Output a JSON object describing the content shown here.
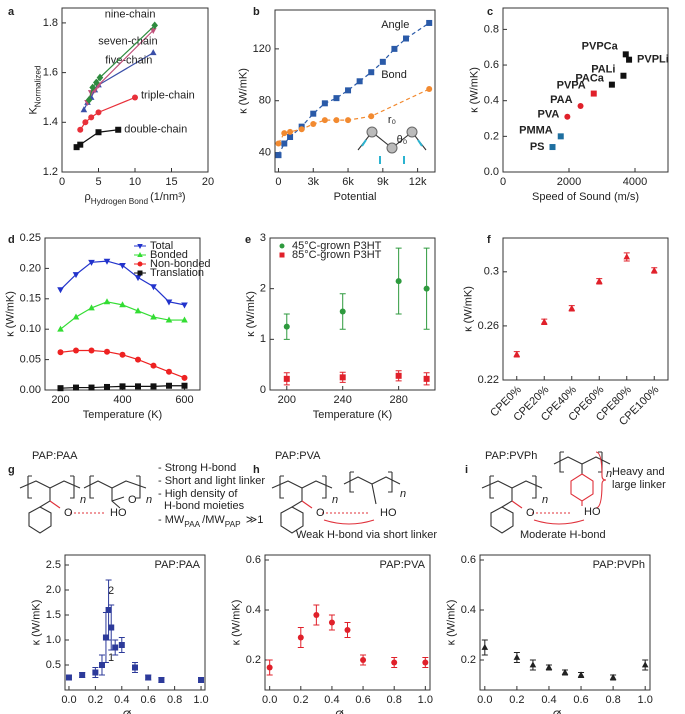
{
  "chart_data": [
    {
      "type": "line",
      "panel": "a",
      "xlabel": [
        {
          "text": "ρ"
        },
        {
          "text": "Hydrogen Bond",
          "sub": true
        },
        {
          "text": "(1/nm³)"
        }
      ],
      "ylabel": [
        {
          "text": "K"
        },
        {
          "text": "Normalized",
          "sub": true
        }
      ],
      "xlim": [
        0,
        20
      ],
      "xticks": [
        0,
        5,
        10,
        15,
        20
      ],
      "ylim": [
        1.2,
        1.86
      ],
      "yticks": [
        1.2,
        1.4,
        1.6,
        1.8
      ],
      "legend": "inline",
      "line": "solid",
      "series": [
        {
          "name": "double-chain",
          "color": "#111111",
          "marker": "square",
          "x": [
            2,
            2.5,
            5,
            7.7
          ],
          "values": [
            1.3,
            1.31,
            1.36,
            1.37
          ]
        },
        {
          "name": "triple-chain",
          "color": "#e8303a",
          "marker": "circle",
          "x": [
            2.5,
            3.2,
            4,
            5,
            10
          ],
          "values": [
            1.37,
            1.4,
            1.42,
            1.44,
            1.5
          ]
        },
        {
          "name": "five-chain",
          "color": "#3a4fa8",
          "marker": "triangle-up",
          "x": [
            3,
            3.5,
            4,
            4.5,
            5,
            12.5
          ],
          "values": [
            1.45,
            1.48,
            1.5,
            1.53,
            1.55,
            1.68
          ]
        },
        {
          "name": "seven-chain",
          "color": "#c0507a",
          "marker": "triangle-down",
          "x": [
            3.5,
            4,
            4.5,
            5,
            12.5
          ],
          "values": [
            1.48,
            1.52,
            1.53,
            1.55,
            1.77
          ]
        },
        {
          "name": "nine-chain",
          "color": "#2e8b3e",
          "marker": "diamond",
          "x": [
            3.7,
            4.2,
            4.7,
            5.2,
            12.7
          ],
          "values": [
            1.49,
            1.54,
            1.56,
            1.58,
            1.79
          ]
        }
      ]
    },
    {
      "type": "line",
      "panel": "b",
      "xlabel": "Potential",
      "ylabel": "κ (W/mK)",
      "xlim": [
        -300,
        13500
      ],
      "xticks": [
        0,
        {
          "value": 3000,
          "label": "3k"
        },
        {
          "value": 6000,
          "label": "6k"
        },
        {
          "value": 9000,
          "label": "9k"
        },
        {
          "value": 12000,
          "label": "12k"
        }
      ],
      "ylim": [
        25,
        150
      ],
      "yticks": [
        40,
        80,
        120
      ],
      "legend": "inline",
      "line": "dashed",
      "annotations": [
        "r₀",
        "θ₀"
      ],
      "series": [
        {
          "name": "Angle",
          "color": "#2a5aa8",
          "marker": "square",
          "x": [
            0,
            500,
            1000,
            2000,
            3000,
            4000,
            5000,
            6000,
            7000,
            8000,
            9000,
            10000,
            11000,
            13000
          ],
          "values": [
            38,
            47,
            52,
            60,
            70,
            78,
            82,
            88,
            95,
            102,
            110,
            120,
            128,
            140
          ]
        },
        {
          "name": "Bond",
          "color": "#f28a30",
          "marker": "circle",
          "x": [
            0,
            500,
            1000,
            2000,
            3000,
            4000,
            5000,
            6000,
            8000,
            13000
          ],
          "values": [
            47,
            55,
            56,
            58,
            62,
            65,
            65,
            65,
            68,
            89
          ]
        }
      ]
    },
    {
      "type": "scatter",
      "panel": "c",
      "xlabel": "Speed of Sound (m/s)",
      "ylabel": "κ (W/mK)",
      "xlim": [
        0,
        5000
      ],
      "xticks": [
        0,
        2000,
        4000
      ],
      "ylim": [
        0,
        0.92
      ],
      "yticks": [
        {
          "value": 0,
          "label": "0.0"
        },
        0.2,
        0.4,
        0.6,
        0.8
      ],
      "legend": "inline",
      "series": [
        {
          "name": "PS",
          "color": "#1e6fa0",
          "marker": "square",
          "x": [
            1500
          ],
          "values": [
            0.14
          ]
        },
        {
          "name": "PMMA",
          "color": "#1e6fa0",
          "marker": "square",
          "x": [
            1750
          ],
          "values": [
            0.2
          ]
        },
        {
          "name": "PVA",
          "color": "#e0202a",
          "marker": "circle",
          "x": [
            1950
          ],
          "values": [
            0.31
          ]
        },
        {
          "name": "PAA",
          "color": "#e0202a",
          "marker": "circle",
          "x": [
            2350
          ],
          "values": [
            0.37
          ]
        },
        {
          "name": "PVPA",
          "color": "#e0202a",
          "marker": "square",
          "x": [
            2750
          ],
          "values": [
            0.44
          ]
        },
        {
          "name": "PACa",
          "color": "#111111",
          "marker": "square",
          "x": [
            3300
          ],
          "values": [
            0.49
          ]
        },
        {
          "name": "PALi",
          "color": "#111111",
          "marker": "square",
          "x": [
            3650
          ],
          "values": [
            0.54
          ]
        },
        {
          "name": "PVPCa",
          "color": "#111111",
          "marker": "square",
          "x": [
            3720
          ],
          "values": [
            0.66
          ]
        },
        {
          "name": "PVPLi",
          "color": "#111111",
          "marker": "square",
          "x": [
            3820
          ],
          "values": [
            0.63
          ]
        }
      ]
    },
    {
      "type": "line",
      "panel": "d",
      "xlabel": "Temperature (K)",
      "ylabel": "κ (W/mK)",
      "xlim": [
        150,
        650
      ],
      "xticks": [
        200,
        400,
        600
      ],
      "ylim": [
        0,
        0.25
      ],
      "yticks": [
        {
          "value": 0,
          "label": "0.00"
        },
        {
          "value": 0.05,
          "label": "0.05"
        },
        {
          "value": 0.1,
          "label": "0.10"
        },
        {
          "value": 0.15,
          "label": "0.15"
        },
        {
          "value": 0.2,
          "label": "0.20"
        },
        {
          "value": 0.25,
          "label": "0.25"
        }
      ],
      "legend": "upper right",
      "line": "solid",
      "series": [
        {
          "name": "Total",
          "color": "#2233cc",
          "marker": "triangle-down",
          "x": [
            200,
            250,
            300,
            350,
            400,
            450,
            500,
            550,
            600
          ],
          "values": [
            0.165,
            0.19,
            0.21,
            0.212,
            0.205,
            0.185,
            0.17,
            0.145,
            0.14
          ]
        },
        {
          "name": "Bonded",
          "color": "#33dd33",
          "marker": "triangle-up",
          "x": [
            200,
            250,
            300,
            350,
            400,
            450,
            500,
            550,
            600
          ],
          "values": [
            0.1,
            0.12,
            0.135,
            0.145,
            0.14,
            0.13,
            0.12,
            0.115,
            0.115
          ]
        },
        {
          "name": "Non-bonded",
          "color": "#ee2222",
          "marker": "circle",
          "x": [
            200,
            250,
            300,
            350,
            400,
            450,
            500,
            550,
            600
          ],
          "values": [
            0.062,
            0.065,
            0.065,
            0.063,
            0.058,
            0.05,
            0.04,
            0.03,
            0.02
          ]
        },
        {
          "name": "Translation",
          "color": "#111111",
          "marker": "square",
          "x": [
            200,
            250,
            300,
            350,
            400,
            450,
            500,
            550,
            600
          ],
          "values": [
            0.003,
            0.004,
            0.004,
            0.005,
            0.006,
            0.006,
            0.006,
            0.007,
            0.007
          ]
        }
      ]
    },
    {
      "type": "scatter",
      "panel": "e",
      "xlabel": "Temperature (K)",
      "ylabel": "κ (W/mK)",
      "xlim": [
        188,
        306
      ],
      "xticks": [
        200,
        240,
        280
      ],
      "ylim": [
        0,
        3
      ],
      "yticks": [
        0,
        1,
        2,
        3
      ],
      "legend": "upper left",
      "series": [
        {
          "name": "45°C-grown P3HT",
          "color": "#2e9a3e",
          "marker": "circle",
          "x": [
            200,
            240,
            280,
            300
          ],
          "values": [
            1.25,
            1.55,
            2.15,
            2.0
          ],
          "errors": [
            0.25,
            0.35,
            0.65,
            0.8
          ]
        },
        {
          "name": "85°C-grown P3HT",
          "color": "#e0202a",
          "marker": "square",
          "x": [
            200,
            240,
            280,
            300
          ],
          "values": [
            0.22,
            0.25,
            0.28,
            0.22
          ],
          "errors": [
            0.12,
            0.1,
            0.1,
            0.12
          ]
        }
      ]
    },
    {
      "type": "scatter",
      "panel": "f",
      "ylabel": "κ (W/mK)",
      "categories": [
        "CPE0%",
        "CPE20%",
        "CPE40%",
        "CPE60%",
        "CPE80%",
        "CPE100%"
      ],
      "ylim": [
        0.22,
        0.325
      ],
      "yticks": [
        0.22,
        0.26,
        0.3
      ],
      "series": [
        {
          "color": "#e0202a",
          "marker": "triangle-up",
          "values": [
            0.239,
            0.263,
            0.273,
            0.293,
            0.311,
            0.301
          ],
          "errors": [
            0.002,
            0.002,
            0.002,
            0.002,
            0.003,
            0.002
          ]
        }
      ]
    },
    {
      "type": "scatter",
      "title": "PAP:PAA",
      "xlabel": [
        {
          "text": "Ø"
        },
        {
          "text": "PAP",
          "sub": true
        }
      ],
      "ylabel": "κ (W/mK)",
      "xlim": [
        -0.03,
        1.03
      ],
      "xticks": [
        {
          "value": 0,
          "label": "0.0"
        },
        0.2,
        0.4,
        0.6,
        0.8,
        {
          "value": 1,
          "label": "1.0"
        }
      ],
      "ylim": [
        0,
        2.7
      ],
      "yticks": [
        0.5,
        {
          "value": 1,
          "label": "1.0"
        },
        1.5,
        {
          "value": 2,
          "label": "2.0"
        },
        2.5
      ],
      "annotations": [
        "2",
        "1"
      ],
      "series": [
        {
          "color": "#2c3a9a",
          "marker": "square",
          "x": [
            0,
            0.1,
            0.2,
            0.25,
            0.28,
            0.3,
            0.32,
            0.35,
            0.4,
            0.5,
            0.6,
            0.7,
            1.0
          ],
          "values": [
            0.25,
            0.3,
            0.35,
            0.5,
            1.05,
            1.6,
            1.25,
            0.85,
            0.9,
            0.45,
            0.25,
            0.2,
            0.2
          ],
          "errors": [
            0.05,
            0.05,
            0.1,
            0.2,
            0.5,
            0.6,
            0.45,
            0.15,
            0.15,
            0.1,
            0.05,
            0.05,
            0.05
          ]
        }
      ]
    },
    {
      "type": "scatter",
      "title": "PAP:PVA",
      "xlabel": [
        {
          "text": "Ø"
        },
        {
          "text": "PAP",
          "sub": true
        }
      ],
      "ylabel": "κ (W/mK)",
      "xlim": [
        -0.03,
        1.03
      ],
      "xticks": [
        {
          "value": 0,
          "label": "0.0"
        },
        0.2,
        0.4,
        0.6,
        0.8,
        {
          "value": 1,
          "label": "1.0"
        }
      ],
      "ylim": [
        0.08,
        0.62
      ],
      "yticks": [
        0.2,
        0.4,
        0.6
      ],
      "series": [
        {
          "color": "#e0202a",
          "marker": "circle",
          "x": [
            0,
            0.2,
            0.3,
            0.4,
            0.5,
            0.6,
            0.8,
            1.0
          ],
          "values": [
            0.17,
            0.29,
            0.38,
            0.35,
            0.32,
            0.2,
            0.19,
            0.19
          ],
          "errors": [
            0.03,
            0.04,
            0.04,
            0.03,
            0.03,
            0.02,
            0.02,
            0.02
          ]
        }
      ]
    },
    {
      "type": "scatter",
      "title": "PAP:PVPh",
      "xlabel": [
        {
          "text": "Ø"
        },
        {
          "text": "PAP",
          "sub": true
        }
      ],
      "ylabel": "κ (W/mK)",
      "xlim": [
        -0.03,
        1.03
      ],
      "xticks": [
        {
          "value": 0,
          "label": "0.0"
        },
        0.2,
        0.4,
        0.6,
        0.8,
        {
          "value": 1,
          "label": "1.0"
        }
      ],
      "ylim": [
        0.08,
        0.62
      ],
      "yticks": [
        0.2,
        0.4,
        0.6
      ],
      "series": [
        {
          "color": "#222222",
          "marker": "triangle-up",
          "x": [
            0,
            0.2,
            0.3,
            0.4,
            0.5,
            0.6,
            0.8,
            1.0
          ],
          "values": [
            0.25,
            0.21,
            0.18,
            0.17,
            0.15,
            0.14,
            0.13,
            0.18
          ],
          "errors": [
            0.03,
            0.02,
            0.02,
            0.01,
            0.01,
            0.01,
            0.01,
            0.02
          ]
        }
      ]
    }
  ],
  "diagrams": [
    {
      "panel": "g",
      "title": "PAP:PAA",
      "atoms": [
        "n",
        "n",
        "O",
        "HO",
        "O"
      ],
      "notes": [
        "- Strong H-bond",
        "- Short and light linker",
        "- High density of",
        "H-bond moieties"
      ],
      "ratio": [
        {
          "text": "- MW"
        },
        {
          "text": "PAA",
          "sub": true
        },
        {
          "text": "/MW"
        },
        {
          "text": "PAP",
          "sub": true
        },
        {
          "text": " ≫1"
        }
      ]
    },
    {
      "panel": "h",
      "title": "PAP:PVA",
      "atoms": [
        "n",
        "n",
        "O",
        "HO"
      ],
      "notes": [
        "Weak H-bond via short linker"
      ]
    },
    {
      "panel": "i",
      "title": "PAP:PVPh",
      "atoms": [
        "n",
        "n",
        "O",
        "HO"
      ],
      "notes": [
        "Heavy and",
        "large linker",
        "Moderate H-bond"
      ]
    }
  ]
}
